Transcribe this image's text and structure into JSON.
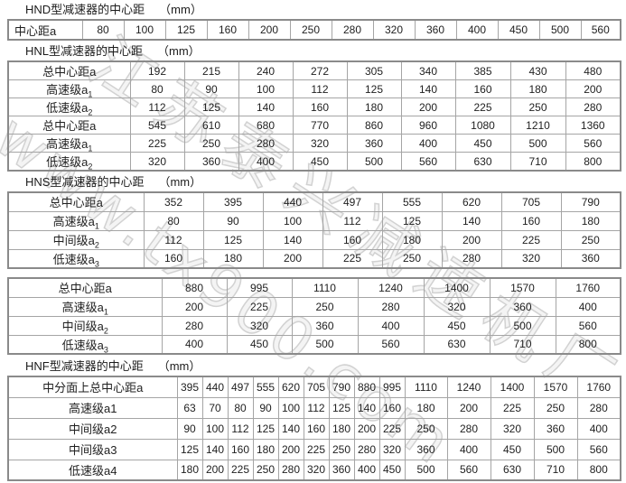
{
  "palette": {
    "background": "#ffffff",
    "table_border": "#8a8a8a",
    "cell_border": "#a5a5a5",
    "text": "#1f1f1f",
    "watermark": "#d2d2d2"
  },
  "watermark": {
    "cn_text": "江苏泰兴减速机厂",
    "url_text": "www.tx900.com"
  },
  "sections": [
    {
      "title": "HND型减速器的中心距",
      "unit": "（mm）",
      "tables": [
        {
          "rows": [
            {
              "label": "中心距a",
              "sub": "",
              "values": [
                80,
                100,
                125,
                160,
                200,
                250,
                280,
                320,
                360,
                400,
                450,
                500,
                560
              ]
            }
          ]
        }
      ]
    },
    {
      "title": "HNL型减速器的中心距",
      "unit": "（mm）",
      "tables": [
        {
          "rows": [
            {
              "label": "总中心距a",
              "sub": "",
              "values": [
                192,
                215,
                240,
                272,
                305,
                340,
                385,
                430,
                480
              ]
            },
            {
              "label": "高速级a",
              "sub": "1",
              "values": [
                80,
                90,
                100,
                112,
                125,
                140,
                160,
                180,
                200
              ]
            },
            {
              "label": "低速级a",
              "sub": "2",
              "values": [
                112,
                125,
                140,
                160,
                180,
                200,
                225,
                250,
                280
              ]
            },
            {
              "label": "总中心距a",
              "sub": "",
              "values": [
                545,
                610,
                680,
                770,
                860,
                960,
                1080,
                1210,
                1360
              ]
            },
            {
              "label": "高速级a",
              "sub": "1",
              "values": [
                225,
                250,
                280,
                320,
                360,
                400,
                450,
                500,
                560
              ]
            },
            {
              "label": "低速级a",
              "sub": "2",
              "values": [
                320,
                360,
                400,
                450,
                500,
                560,
                630,
                710,
                800
              ]
            }
          ]
        }
      ]
    },
    {
      "title": "HNS型减速器的中心距",
      "unit": "（mm）",
      "tables": [
        {
          "rows": [
            {
              "label": "总中心距a",
              "sub": "",
              "values": [
                352,
                395,
                440,
                497,
                555,
                620,
                705,
                790
              ]
            },
            {
              "label": "高速级a",
              "sub": "1",
              "values": [
                80,
                90,
                100,
                112,
                125,
                140,
                160,
                180
              ]
            },
            {
              "label": "中间级a",
              "sub": "2",
              "values": [
                112,
                125,
                140,
                160,
                180,
                200,
                225,
                250
              ]
            },
            {
              "label": "低速级a",
              "sub": "3",
              "values": [
                160,
                180,
                200,
                225,
                250,
                280,
                320,
                360
              ]
            }
          ]
        },
        {
          "rows": [
            {
              "label": "总中心距a",
              "sub": "",
              "values": [
                880,
                995,
                1110,
                1240,
                1400,
                1570,
                1760
              ]
            },
            {
              "label": "高速级a",
              "sub": "1",
              "values": [
                200,
                225,
                250,
                280,
                320,
                360,
                400
              ]
            },
            {
              "label": "中间级a",
              "sub": "2",
              "values": [
                280,
                320,
                360,
                400,
                450,
                500,
                560
              ]
            },
            {
              "label": "低速级a",
              "sub": "3",
              "values": [
                400,
                450,
                500,
                560,
                630,
                710,
                800
              ]
            }
          ]
        }
      ]
    },
    {
      "title": "HNF型减速器的中心距",
      "unit": "（mm）",
      "tables": [
        {
          "rows": [
            {
              "label": "中分面上总中心距a",
              "sub": "",
              "values": [
                395,
                440,
                497,
                555,
                620,
                705,
                790,
                880,
                995,
                1110,
                1240,
                1400,
                1570,
                1760
              ]
            },
            {
              "label": "高速级a1",
              "sub": "",
              "values": [
                63,
                70,
                80,
                90,
                100,
                112,
                125,
                140,
                160,
                180,
                200,
                225,
                250,
                280
              ]
            },
            {
              "label": "中间级a2",
              "sub": "",
              "values": [
                90,
                100,
                112,
                125,
                140,
                160,
                180,
                200,
                225,
                250,
                280,
                320,
                360,
                400
              ]
            },
            {
              "label": "中间级a3",
              "sub": "",
              "values": [
                125,
                140,
                160,
                180,
                200,
                225,
                250,
                280,
                320,
                360,
                400,
                450,
                500,
                560
              ]
            },
            {
              "label": "低速级a4",
              "sub": "",
              "values": [
                180,
                200,
                225,
                250,
                280,
                320,
                360,
                400,
                450,
                500,
                560,
                630,
                710,
                800
              ]
            }
          ]
        }
      ]
    }
  ]
}
